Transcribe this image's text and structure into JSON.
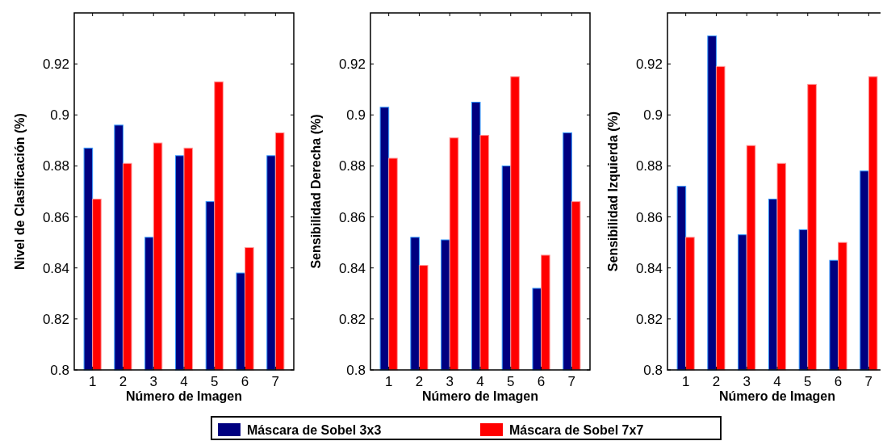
{
  "chart_data": [
    {
      "type": "bar",
      "ylabel": "Nivel de Clasificación (%)",
      "xlabel": "Número de Imagen",
      "categories": [
        "1",
        "2",
        "3",
        "4",
        "5",
        "6",
        "7"
      ],
      "series": [
        {
          "color": "#000080",
          "values": [
            0.887,
            0.896,
            0.852,
            0.884,
            0.866,
            0.838,
            0.884
          ]
        },
        {
          "color": "#ff0000",
          "values": [
            0.867,
            0.881,
            0.889,
            0.887,
            0.913,
            0.848,
            0.893
          ]
        }
      ],
      "ylim": [
        0.8,
        0.94
      ],
      "yticks": [
        0.8,
        0.82,
        0.84,
        0.86,
        0.88,
        0.9,
        0.92
      ],
      "grid": false,
      "legend": false
    },
    {
      "type": "bar",
      "ylabel": "Sensibilidad Derecha (%)",
      "xlabel": "Número de Imagen",
      "categories": [
        "1",
        "2",
        "3",
        "4",
        "5",
        "6",
        "7"
      ],
      "series": [
        {
          "name": "Máscara de Sobel 3x3",
          "color": "#000080",
          "values": [
            0.903,
            0.852,
            0.851,
            0.905,
            0.88,
            0.832,
            0.893
          ]
        },
        {
          "name": "Máscara de Sobel 7x7",
          "color": "#ff0000",
          "values": [
            0.883,
            0.841,
            0.891,
            0.892,
            0.915,
            0.845,
            0.866
          ]
        }
      ],
      "ylim": [
        0.8,
        0.94
      ],
      "yticks": [
        0.8,
        0.82,
        0.84,
        0.86,
        0.88,
        0.9,
        0.92
      ],
      "grid": false,
      "legend": "bottom"
    },
    {
      "type": "bar",
      "ylabel": "Sensibilidad Izquierda (%)",
      "xlabel": "Número de Imagen",
      "categories": [
        "1",
        "2",
        "3",
        "4",
        "5",
        "6",
        "7"
      ],
      "series": [
        {
          "color": "#000080",
          "values": [
            0.872,
            0.931,
            0.853,
            0.867,
            0.855,
            0.843,
            0.878
          ]
        },
        {
          "color": "#ff0000",
          "values": [
            0.852,
            0.919,
            0.888,
            0.881,
            0.912,
            0.85,
            0.915
          ]
        }
      ],
      "ylim": [
        0.8,
        0.94
      ],
      "yticks": [
        0.8,
        0.82,
        0.84,
        0.86,
        0.88,
        0.9,
        0.92
      ],
      "grid": false,
      "legend": false
    }
  ]
}
